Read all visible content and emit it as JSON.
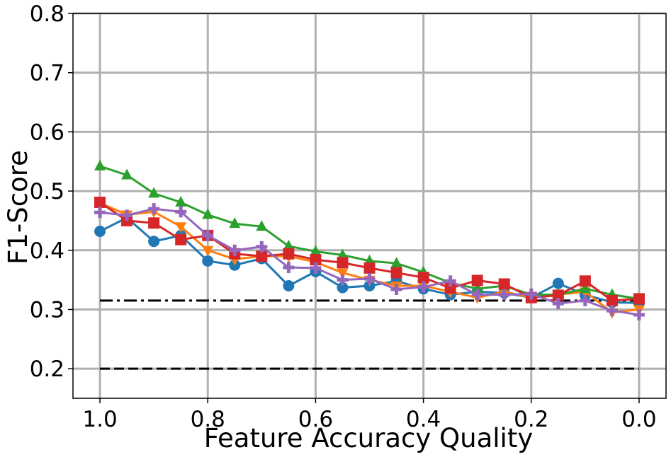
{
  "chart_data": {
    "type": "line",
    "xlabel": "Feature Accuracy Quality",
    "ylabel": "F1-Score",
    "x": [
      1.0,
      0.95,
      0.9,
      0.85,
      0.8,
      0.75,
      0.7,
      0.65,
      0.6,
      0.55,
      0.5,
      0.45,
      0.4,
      0.35,
      0.3,
      0.25,
      0.2,
      0.15,
      0.1,
      0.05,
      0.0
    ],
    "xlim": [
      1.05,
      -0.05
    ],
    "xticks": [
      {
        "value": 1,
        "label": "1.0"
      },
      0.8,
      0.6,
      0.4,
      0.2,
      {
        "value": 0,
        "label": "0.0"
      }
    ],
    "ylim": [
      0.15,
      0.8
    ],
    "yticks": [
      0.2,
      0.3,
      0.4,
      0.5,
      0.6,
      0.7,
      0.8
    ],
    "grid": true,
    "series": [
      {
        "color": "#1f77b4",
        "marker": "circle",
        "values": [
          0.432,
          0.455,
          0.415,
          0.425,
          0.382,
          0.375,
          0.386,
          0.34,
          0.364,
          0.337,
          0.34,
          0.348,
          0.335,
          0.325,
          0.33,
          0.328,
          0.32,
          0.344,
          0.325,
          0.312,
          0.311
        ]
      },
      {
        "color": "#ff7f0e",
        "marker": "triangle-down",
        "values": [
          0.48,
          0.46,
          0.465,
          0.44,
          0.4,
          0.385,
          0.39,
          0.39,
          0.38,
          0.362,
          0.35,
          0.34,
          0.34,
          0.33,
          0.32,
          0.33,
          0.32,
          0.325,
          0.33,
          0.295,
          0.3
        ]
      },
      {
        "color": "#2ca02c",
        "marker": "triangle-up",
        "values": [
          0.542,
          0.527,
          0.496,
          0.481,
          0.46,
          0.445,
          0.44,
          0.407,
          0.398,
          0.392,
          0.382,
          0.378,
          0.363,
          0.345,
          0.335,
          0.34,
          0.325,
          0.325,
          0.335,
          0.325,
          0.318
        ]
      },
      {
        "color": "#d62728",
        "marker": "square",
        "values": [
          0.481,
          0.45,
          0.446,
          0.418,
          0.425,
          0.394,
          0.39,
          0.394,
          0.384,
          0.379,
          0.37,
          0.362,
          0.354,
          0.336,
          0.349,
          0.343,
          0.32,
          0.324,
          0.348,
          0.315,
          0.318
        ]
      },
      {
        "color": "#9467bd",
        "marker": "plus",
        "values": [
          0.464,
          0.459,
          0.47,
          0.465,
          0.425,
          0.4,
          0.406,
          0.371,
          0.37,
          0.35,
          0.352,
          0.334,
          0.338,
          0.348,
          0.325,
          0.325,
          0.326,
          0.31,
          0.315,
          0.298,
          0.291
        ]
      }
    ],
    "hlines": [
      {
        "value": 0.315,
        "color": "#000000",
        "style": "dashdot"
      },
      {
        "value": 0.2,
        "color": "#000000",
        "style": "dashed"
      }
    ]
  }
}
